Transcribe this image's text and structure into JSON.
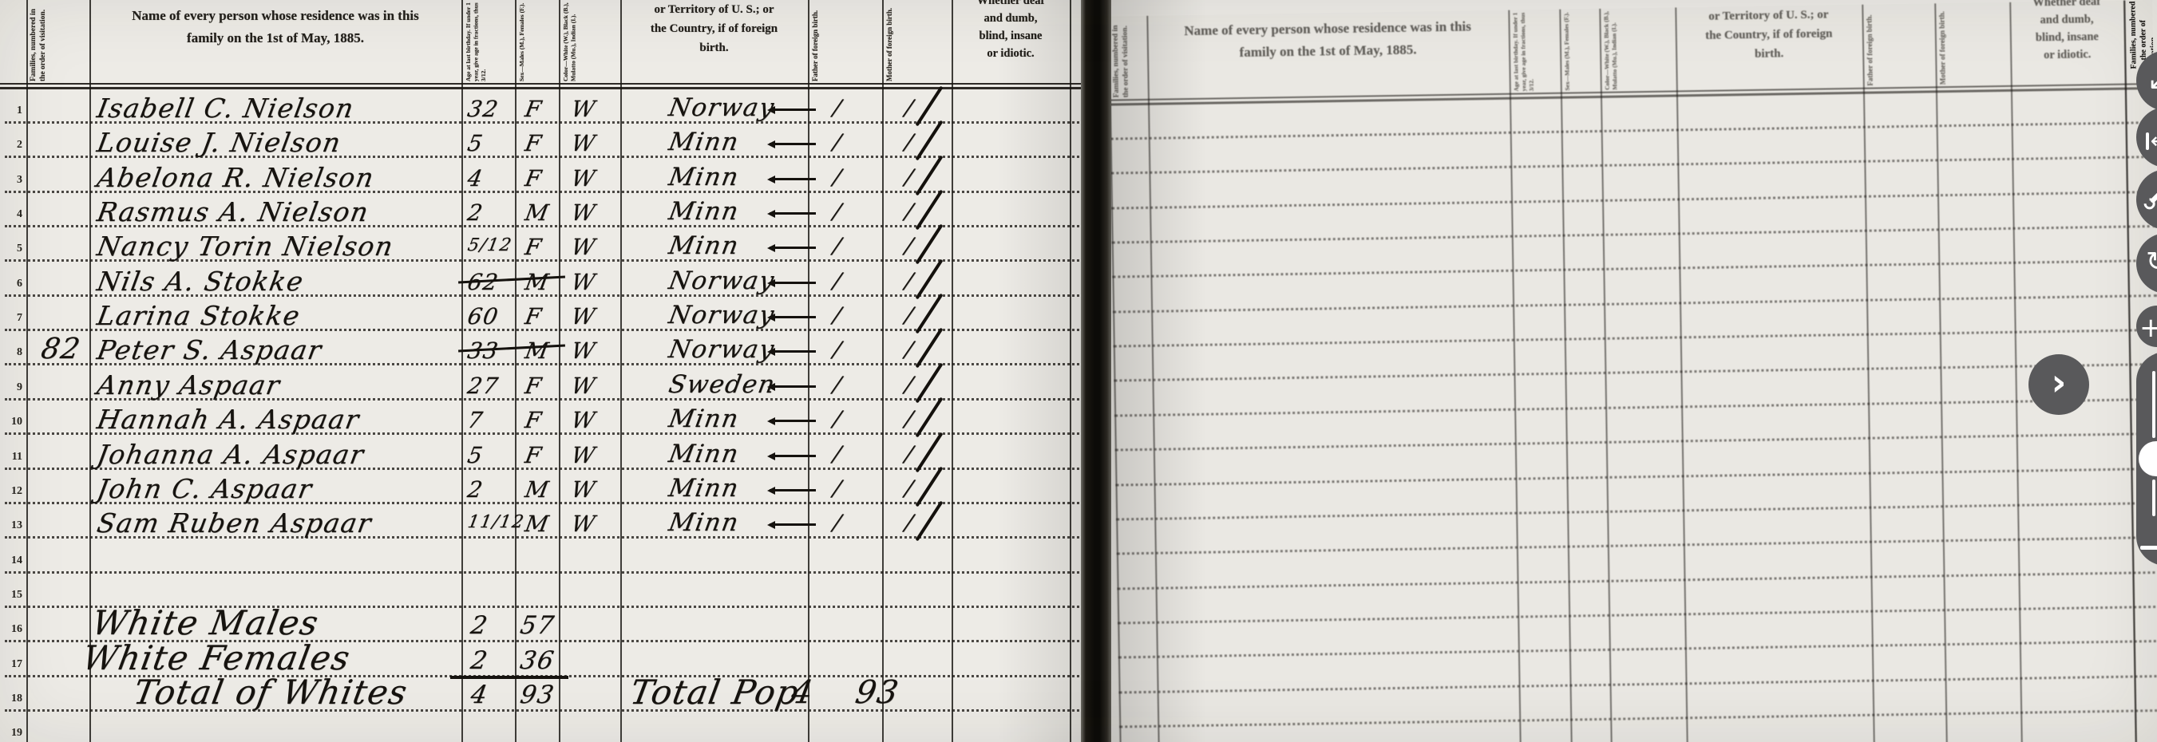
{
  "viewer": {
    "next_button": {
      "glyph": "›",
      "label": "next-image"
    },
    "toolbar": [
      {
        "name": "pan-lower-left",
        "glyph": "↙"
      },
      {
        "name": "previous-image",
        "glyph": "←"
      },
      {
        "name": "adjust-tools",
        "glyph": "wrench"
      },
      {
        "name": "rotate-image",
        "glyph": "↻"
      }
    ],
    "zoom": {
      "zoom_in": "+",
      "zoom_out": "−"
    },
    "colors": {
      "button": "#59595b",
      "icon": "#ffffff"
    }
  },
  "document": {
    "headers": {
      "family_vertical": "Families, numbered in the order of visitation.",
      "name_line1": "Name of every person whose residence was in this",
      "name_line2": "family on the 1st of May, 1885.",
      "age_vertical": "Age at last birthday. If under 1 year, give age in fractions, thus 3/12.",
      "sex_vertical": "Sex—Males (M.), Females (F.).",
      "color_vertical": "Color—White (W.), Black (B.), Mulatto (Mu.), Indian (I.).",
      "birthplace_line1": "or Territory of U. S.; or",
      "birthplace_line2": "the Country, if of foreign",
      "birthplace_line3": "birth.",
      "father_vertical": "Father of foreign birth.",
      "mother_vertical": "Mother of foreign birth.",
      "disability_line1": "Whether deaf",
      "disability_line2": "and dumb,",
      "disability_line3": "blind, insane",
      "disability_line4": "or idiotic."
    },
    "rows": [
      {
        "n": "1",
        "name": "Isabell C. Nielson",
        "age": "32",
        "sex": "F",
        "color": "W",
        "birthplace": "Norway",
        "father": "1",
        "mother": "1"
      },
      {
        "n": "2",
        "name": "Louise J. Nielson",
        "age": "5",
        "sex": "F",
        "color": "W",
        "birthplace": "Minn",
        "father": "1",
        "mother": "1"
      },
      {
        "n": "3",
        "name": "Abelona R. Nielson",
        "age": "4",
        "sex": "F",
        "color": "W",
        "birthplace": "Minn",
        "father": "1",
        "mother": "1"
      },
      {
        "n": "4",
        "name": "Rasmus A. Nielson",
        "age": "2",
        "sex": "M",
        "color": "W",
        "birthplace": "Minn",
        "father": "1",
        "mother": "1"
      },
      {
        "n": "5",
        "name": "Nancy Torin Nielson",
        "age": "5/12",
        "sex": "F",
        "color": "W",
        "birthplace": "Minn",
        "father": "1",
        "mother": "1"
      },
      {
        "n": "6",
        "name": "Nils A. Stokke",
        "age": "62",
        "sex": "M",
        "color": "W",
        "birthplace": "Norway",
        "father": "1",
        "mother": "1",
        "strike": true
      },
      {
        "n": "7",
        "name": "Larina Stokke",
        "age": "60",
        "sex": "F",
        "color": "W",
        "birthplace": "Norway",
        "father": "1",
        "mother": "1"
      },
      {
        "n": "8",
        "family": "82",
        "name": "Peter S. Aspaar",
        "age": "33",
        "sex": "M",
        "color": "W",
        "birthplace": "Norway",
        "father": "1",
        "mother": "1",
        "strike": true
      },
      {
        "n": "9",
        "name": "Anny Aspaar",
        "age": "27",
        "sex": "F",
        "color": "W",
        "birthplace": "Sweden",
        "father": "1",
        "mother": "1"
      },
      {
        "n": "10",
        "name": "Hannah A. Aspaar",
        "age": "7",
        "sex": "F",
        "color": "W",
        "birthplace": "Minn",
        "father": "1",
        "mother": "1"
      },
      {
        "n": "11",
        "name": "Johanna A. Aspaar",
        "age": "5",
        "sex": "F",
        "color": "W",
        "birthplace": "Minn",
        "father": "1",
        "mother": "1"
      },
      {
        "n": "12",
        "name": "John C. Aspaar",
        "age": "2",
        "sex": "M",
        "color": "W",
        "birthplace": "Minn",
        "father": "1",
        "mother": "1"
      },
      {
        "n": "13",
        "name": "Sam Ruben Aspaar",
        "age": "11/12",
        "sex": "M",
        "color": "W",
        "birthplace": "Minn",
        "father": "1",
        "mother": "1"
      },
      {
        "n": "14"
      },
      {
        "n": "15"
      },
      {
        "n": "16",
        "script": "White Males",
        "age": "2",
        "sex": "57"
      },
      {
        "n": "17",
        "script": "White Females",
        "age": "2",
        "sex": "36",
        "underline": true
      },
      {
        "n": "18",
        "script": "Total of Whites",
        "age": "4",
        "sex": "93",
        "total_pop": true
      },
      {
        "n": "19"
      }
    ],
    "summary": {
      "total_pop_label": "Total Pop",
      "total_pop_a": "4",
      "total_pop_b": "93"
    },
    "colors": {
      "paper": "#edebe6",
      "ink": "#1b1815",
      "binding": "#0e0d0b"
    }
  }
}
